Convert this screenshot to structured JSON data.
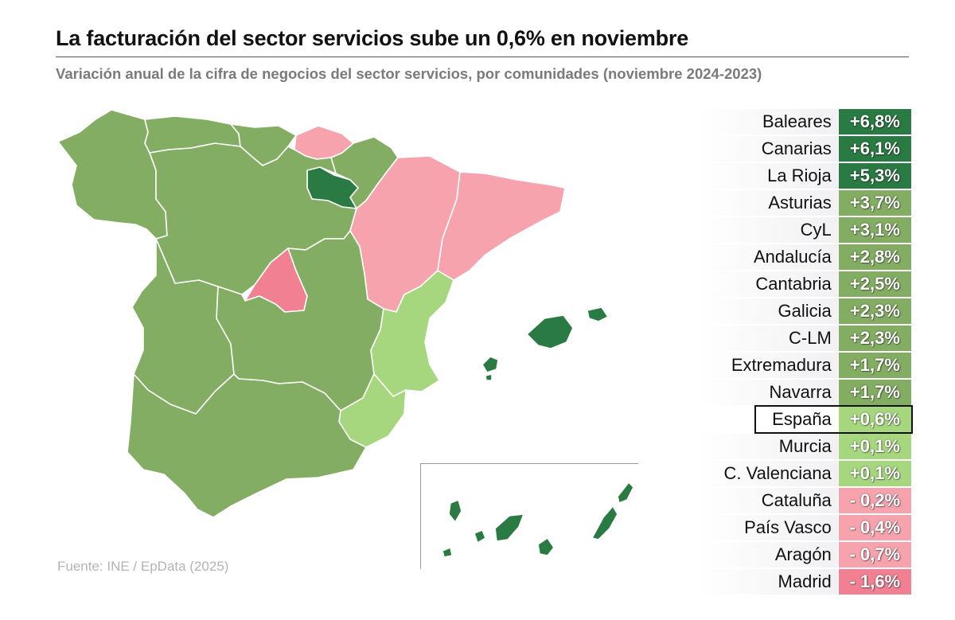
{
  "title": "La facturación del sector servicios sube un 0,6% en noviembre",
  "subtitle": "Variación anual de la cifra de negocios del sector servicios, por comunidades (noviembre 2024-2023)",
  "source": "Fuente: INE / EpData (2025)",
  "colors": {
    "dark_green": "#2a7a43",
    "mid_green": "#83ad62",
    "light_green": "#a6d77e",
    "light_pink": "#f6a3ae",
    "pink": "#f08092",
    "border": "#ffffff"
  },
  "chart_data": {
    "type": "table",
    "map": "choropleth of Spanish autonomous communities",
    "rows": [
      {
        "region": "Baleares",
        "value": 6.8,
        "label": "+6,8%",
        "color": "#2a7a43"
      },
      {
        "region": "Canarias",
        "value": 6.1,
        "label": "+6,1%",
        "color": "#2a7a43"
      },
      {
        "region": "La Rioja",
        "value": 5.3,
        "label": "+5,3%",
        "color": "#2a7a43"
      },
      {
        "region": "Asturias",
        "value": 3.7,
        "label": "+3,7%",
        "color": "#83ad62"
      },
      {
        "region": "CyL",
        "value": 3.1,
        "label": "+3,1%",
        "color": "#83ad62"
      },
      {
        "region": "Andalucía",
        "value": 2.8,
        "label": "+2,8%",
        "color": "#83ad62"
      },
      {
        "region": "Cantabria",
        "value": 2.5,
        "label": "+2,5%",
        "color": "#83ad62"
      },
      {
        "region": "Galicia",
        "value": 2.3,
        "label": "+2,3%",
        "color": "#83ad62"
      },
      {
        "region": "C-LM",
        "value": 2.3,
        "label": "+2,3%",
        "color": "#83ad62"
      },
      {
        "region": "Extremadura",
        "value": 1.7,
        "label": "+1,7%",
        "color": "#83ad62"
      },
      {
        "region": "Navarra",
        "value": 1.7,
        "label": "+1,7%",
        "color": "#83ad62"
      },
      {
        "region": "España",
        "value": 0.6,
        "label": "+0,6%",
        "color": "#a6d77e",
        "highlight": true
      },
      {
        "region": "Murcia",
        "value": 0.1,
        "label": "+0,1%",
        "color": "#a6d77e"
      },
      {
        "region": "C. Valenciana",
        "value": 0.1,
        "label": "+0,1%",
        "color": "#a6d77e"
      },
      {
        "region": "Cataluña",
        "value": -0.2,
        "label": "- 0,2%",
        "color": "#f6a3ae"
      },
      {
        "region": "País Vasco",
        "value": -0.4,
        "label": "- 0,4%",
        "color": "#f6a3ae"
      },
      {
        "region": "Aragón",
        "value": -0.7,
        "label": "- 0,7%",
        "color": "#f6a3ae"
      },
      {
        "region": "Madrid",
        "value": -1.6,
        "label": "- 1,6%",
        "color": "#f08092"
      }
    ]
  }
}
